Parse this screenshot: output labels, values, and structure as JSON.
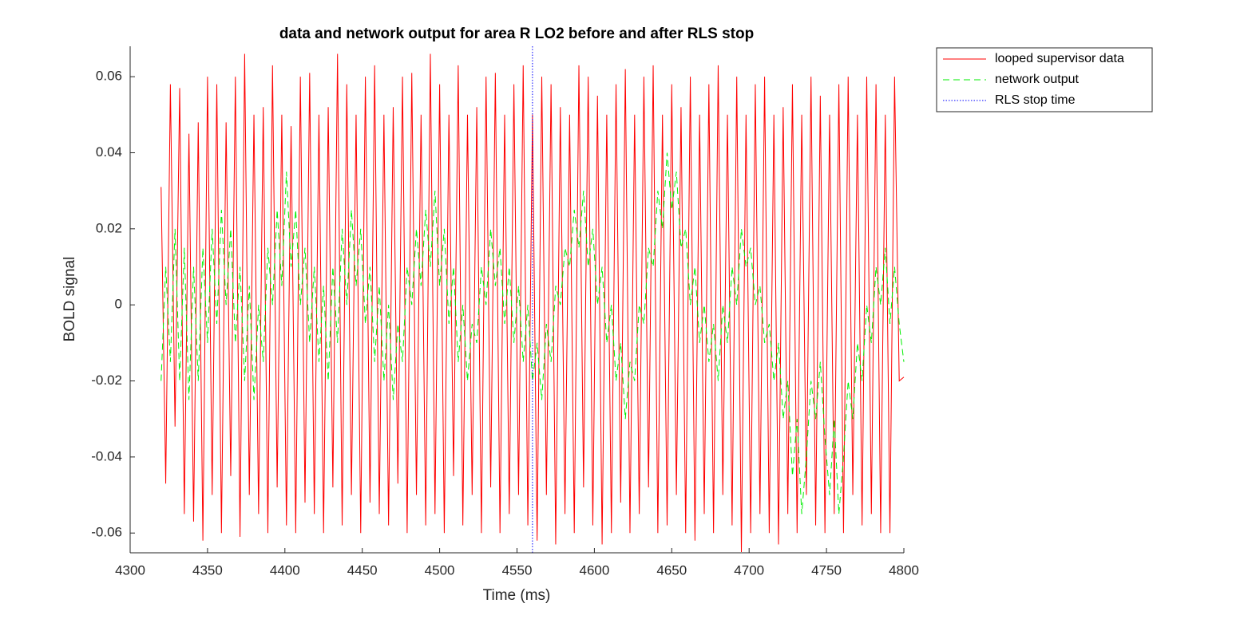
{
  "chart_data": {
    "type": "line",
    "title": "data and network output for area R LO2 before and after RLS stop",
    "xlabel": "Time (ms)",
    "ylabel": "BOLD signal",
    "xlim": [
      4300,
      4800
    ],
    "xticks": [
      4300,
      4350,
      4400,
      4450,
      4500,
      4550,
      4600,
      4650,
      4700,
      4750,
      4800
    ],
    "ylim": [
      -0.0652,
      0.068
    ],
    "yticks": [
      -0.06,
      -0.04,
      -0.02,
      0,
      0.02,
      0.04,
      0.06
    ],
    "legend": "outside-top-right",
    "x": [
      4320,
      4323,
      4326,
      4329,
      4332,
      4335,
      4338,
      4341,
      4344,
      4347,
      4350,
      4353,
      4356,
      4359,
      4362,
      4365,
      4368,
      4371,
      4374,
      4377,
      4380,
      4383,
      4386,
      4389,
      4392,
      4395,
      4398,
      4401,
      4404,
      4407,
      4410,
      4413,
      4416,
      4419,
      4422,
      4425,
      4428,
      4431,
      4434,
      4437,
      4440,
      4443,
      4446,
      4449,
      4452,
      4455,
      4458,
      4461,
      4464,
      4467,
      4470,
      4473,
      4476,
      4479,
      4482,
      4485,
      4488,
      4491,
      4494,
      4497,
      4500,
      4503,
      4506,
      4509,
      4512,
      4515,
      4518,
      4521,
      4524,
      4527,
      4530,
      4533,
      4536,
      4539,
      4542,
      4545,
      4548,
      4551,
      4554,
      4557,
      4560,
      4563,
      4566,
      4569,
      4572,
      4575,
      4578,
      4581,
      4584,
      4587,
      4590,
      4593,
      4596,
      4599,
      4602,
      4605,
      4608,
      4611,
      4614,
      4617,
      4620,
      4623,
      4626,
      4629,
      4632,
      4635,
      4638,
      4641,
      4644,
      4647,
      4650,
      4653,
      4656,
      4659,
      4662,
      4665,
      4668,
      4671,
      4674,
      4677,
      4680,
      4683,
      4686,
      4689,
      4692,
      4695,
      4698,
      4701,
      4704,
      4707,
      4710,
      4713,
      4716,
      4719,
      4722,
      4725,
      4728,
      4731,
      4734,
      4737,
      4740,
      4743,
      4746,
      4749,
      4752,
      4755,
      4758,
      4761,
      4764,
      4767,
      4770,
      4773,
      4776,
      4779,
      4782,
      4785,
      4788,
      4791,
      4794,
      4797,
      4800
    ],
    "series": [
      {
        "name": "looped supervisor data",
        "color": "#ff0000",
        "dash": "solid",
        "values": [
          0.031,
          -0.047,
          0.058,
          -0.032,
          0.057,
          -0.055,
          0.045,
          -0.057,
          0.048,
          -0.062,
          0.06,
          -0.05,
          0.058,
          -0.06,
          0.048,
          -0.045,
          0.06,
          -0.061,
          0.066,
          -0.05,
          0.05,
          -0.055,
          0.052,
          -0.06,
          0.063,
          -0.048,
          0.05,
          -0.058,
          0.047,
          -0.06,
          0.06,
          -0.052,
          0.061,
          -0.055,
          0.05,
          -0.06,
          0.052,
          -0.048,
          0.066,
          -0.058,
          0.058,
          -0.05,
          0.05,
          -0.06,
          0.06,
          -0.052,
          0.063,
          -0.055,
          0.05,
          -0.058,
          0.052,
          -0.047,
          0.06,
          -0.06,
          0.061,
          -0.05,
          0.05,
          -0.058,
          0.066,
          -0.055,
          0.058,
          -0.06,
          0.05,
          -0.045,
          0.063,
          -0.058,
          0.05,
          -0.05,
          0.052,
          -0.06,
          0.06,
          -0.048,
          0.061,
          -0.06,
          0.05,
          -0.055,
          0.058,
          -0.05,
          0.063,
          -0.058,
          0.05,
          -0.062,
          0.06,
          -0.05,
          0.058,
          -0.063,
          0.052,
          -0.055,
          0.05,
          -0.06,
          0.063,
          -0.048,
          0.06,
          -0.058,
          0.055,
          -0.063,
          0.05,
          -0.06,
          0.058,
          -0.052,
          0.062,
          -0.06,
          0.05,
          -0.055,
          0.06,
          -0.048,
          0.063,
          -0.06,
          0.05,
          -0.058,
          0.058,
          -0.05,
          0.052,
          -0.06,
          0.06,
          -0.062,
          0.05,
          -0.055,
          0.058,
          -0.06,
          0.063,
          -0.05,
          0.05,
          -0.058,
          0.06,
          -0.065,
          0.05,
          -0.06,
          0.058,
          -0.055,
          0.06,
          -0.06,
          0.05,
          -0.063,
          0.052,
          -0.055,
          0.058,
          -0.06,
          0.05,
          -0.05,
          0.06,
          -0.058,
          0.055,
          -0.06,
          0.05,
          -0.055,
          0.058,
          -0.06,
          0.06,
          -0.05,
          0.05,
          -0.058,
          0.06,
          -0.055,
          0.058,
          -0.06,
          0.05,
          -0.06,
          0.06,
          -0.02,
          -0.019
        ]
      },
      {
        "name": "network output",
        "color": "#00ee00",
        "dash": "dashed",
        "values": [
          -0.02,
          0.01,
          -0.015,
          0.02,
          -0.02,
          0.015,
          -0.025,
          0.01,
          -0.02,
          0.015,
          -0.01,
          0.02,
          -0.005,
          0.025,
          0,
          0.02,
          -0.01,
          0.01,
          -0.02,
          0.005,
          -0.025,
          0,
          -0.015,
          0.015,
          0,
          0.025,
          0.005,
          0.035,
          0.01,
          0.025,
          0,
          0.015,
          -0.01,
          0.01,
          -0.015,
          0.005,
          -0.02,
          0.01,
          -0.01,
          0.02,
          0,
          0.025,
          0.005,
          0.02,
          -0.005,
          0.01,
          -0.015,
          0.005,
          -0.02,
          0,
          -0.025,
          -0.005,
          -0.015,
          0.01,
          0,
          0.02,
          0.005,
          0.025,
          0.01,
          0.03,
          0.005,
          0.02,
          -0.005,
          0.01,
          -0.015,
          0,
          -0.02,
          -0.005,
          -0.01,
          0.01,
          0,
          0.02,
          0.005,
          0.015,
          -0.005,
          0.01,
          -0.01,
          0.005,
          -0.015,
          0,
          -0.02,
          -0.01,
          -0.025,
          -0.005,
          -0.015,
          0.005,
          0,
          0.015,
          0.01,
          0.025,
          0.015,
          0.03,
          0.01,
          0.02,
          0,
          0.01,
          -0.01,
          0,
          -0.02,
          -0.01,
          -0.03,
          -0.015,
          -0.02,
          0,
          -0.005,
          0.015,
          0.01,
          0.03,
          0.02,
          0.04,
          0.025,
          0.035,
          0.015,
          0.02,
          0,
          0.01,
          -0.01,
          0,
          -0.015,
          -0.005,
          -0.02,
          0,
          -0.01,
          0.01,
          0,
          0.02,
          0.01,
          0.015,
          0,
          0.005,
          -0.01,
          -0.005,
          -0.02,
          -0.01,
          -0.03,
          -0.02,
          -0.045,
          -0.03,
          -0.055,
          -0.04,
          -0.02,
          -0.03,
          -0.015,
          -0.035,
          -0.05,
          -0.03,
          -0.055,
          -0.04,
          -0.02,
          -0.03,
          -0.01,
          -0.02,
          0,
          -0.01,
          0.01,
          0,
          0.015,
          -0.005,
          0.01,
          -0.005,
          -0.015
        ]
      },
      {
        "name": "RLS stop time",
        "color": "#0000ff",
        "dash": "dotted",
        "x": [
          4560,
          4560
        ],
        "values": [
          -0.0652,
          0.068
        ]
      }
    ]
  }
}
